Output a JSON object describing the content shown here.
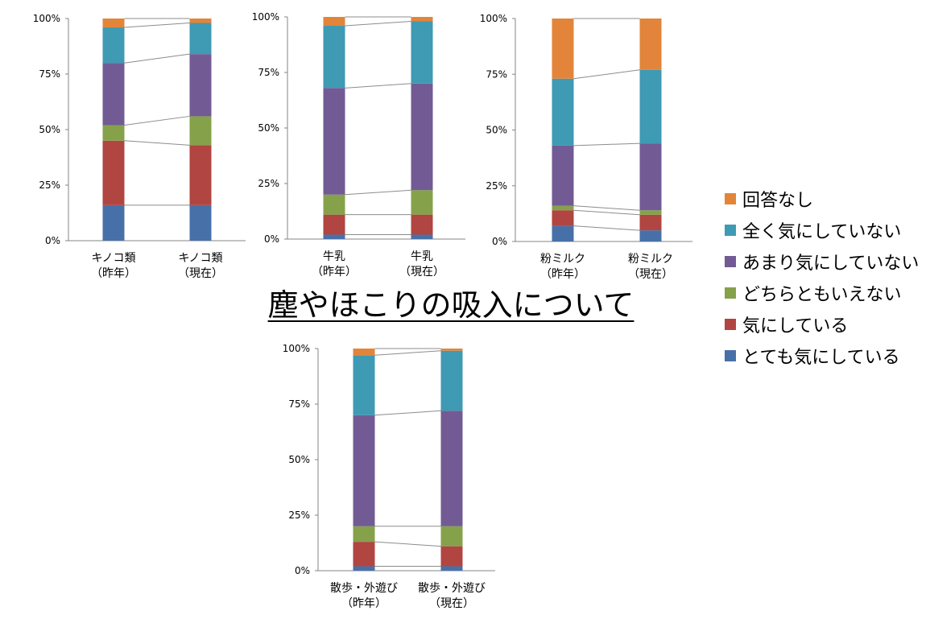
{
  "title": "塵やほこりの吸入について",
  "colors": {
    "回答なし": "#E2853A",
    "全く気にしていない": "#3F9AB3",
    "あまり気にしていない": "#725B94",
    "どちらともいえない": "#85A24A",
    "気にしている": "#B04541",
    "とても気にしている": "#4870A8"
  },
  "legend": [
    {
      "label": "回答なし"
    },
    {
      "label": "全く気にしていない"
    },
    {
      "label": "あまり気にしていない"
    },
    {
      "label": "どちらともいえない"
    },
    {
      "label": "気にしている"
    },
    {
      "label": "とても気にしている"
    }
  ],
  "chart_data": [
    {
      "type": "bar",
      "stacked": "percent",
      "y_ticks": [
        "0%",
        "25%",
        "50%",
        "75%",
        "100%"
      ],
      "categories": [
        [
          "キノコ類",
          "（昨年）"
        ],
        [
          "キノコ類",
          "（現在）"
        ]
      ],
      "series": [
        {
          "name": "とても気にしている",
          "values": [
            16,
            16
          ]
        },
        {
          "name": "気にしている",
          "values": [
            29,
            27
          ]
        },
        {
          "name": "どちらともいえない",
          "values": [
            7,
            13
          ]
        },
        {
          "name": "あまり気にしていない",
          "values": [
            28,
            28
          ]
        },
        {
          "name": "全く気にしていない",
          "values": [
            16,
            14
          ]
        },
        {
          "name": "回答なし",
          "values": [
            4,
            2
          ]
        }
      ]
    },
    {
      "type": "bar",
      "stacked": "percent",
      "y_ticks": [
        "0%",
        "25%",
        "50%",
        "75%",
        "100%"
      ],
      "categories": [
        [
          "牛乳",
          "（昨年）"
        ],
        [
          "牛乳",
          "（現在）"
        ]
      ],
      "series": [
        {
          "name": "とても気にしている",
          "values": [
            2,
            2
          ]
        },
        {
          "name": "気にしている",
          "values": [
            9,
            9
          ]
        },
        {
          "name": "どちらともいえない",
          "values": [
            9,
            11
          ]
        },
        {
          "name": "あまり気にしていない",
          "values": [
            48,
            48
          ]
        },
        {
          "name": "全く気にしていない",
          "values": [
            28,
            28
          ]
        },
        {
          "name": "回答なし",
          "values": [
            4,
            2
          ]
        }
      ]
    },
    {
      "type": "bar",
      "stacked": "percent",
      "y_ticks": [
        "0%",
        "25%",
        "50%",
        "75%",
        "100%"
      ],
      "categories": [
        [
          "粉ミルク",
          "（昨年）"
        ],
        [
          "粉ミルク",
          "（現在）"
        ]
      ],
      "series": [
        {
          "name": "とても気にしている",
          "values": [
            7,
            5
          ]
        },
        {
          "name": "気にしている",
          "values": [
            7,
            7
          ]
        },
        {
          "name": "どちらともいえない",
          "values": [
            2,
            2
          ]
        },
        {
          "name": "あまり気にしていない",
          "values": [
            27,
            30
          ]
        },
        {
          "name": "全く気にしていない",
          "values": [
            30,
            33
          ]
        },
        {
          "name": "回答なし",
          "values": [
            27,
            23
          ]
        }
      ]
    },
    {
      "type": "bar",
      "stacked": "percent",
      "y_ticks": [
        "0%",
        "25%",
        "50%",
        "75%",
        "100%"
      ],
      "categories": [
        [
          "散歩・外遊び",
          "（昨年）"
        ],
        [
          "散歩・外遊び",
          "（現在）"
        ]
      ],
      "series": [
        {
          "name": "とても気にしている",
          "values": [
            2,
            2
          ]
        },
        {
          "name": "気にしている",
          "values": [
            11,
            9
          ]
        },
        {
          "name": "どちらともいえない",
          "values": [
            7,
            9
          ]
        },
        {
          "name": "あまり気にしていない",
          "values": [
            50,
            52
          ]
        },
        {
          "name": "全く気にしていない",
          "values": [
            27,
            27
          ]
        },
        {
          "name": "回答なし",
          "values": [
            3,
            1
          ]
        }
      ]
    }
  ]
}
